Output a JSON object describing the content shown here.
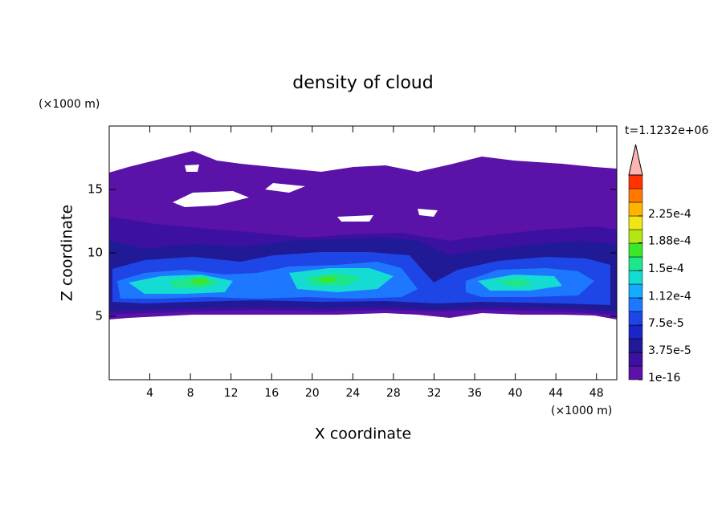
{
  "chart_data": {
    "type": "contour",
    "title": "density of cloud",
    "x_label": "X coordinate",
    "y_label": "Z coordinate",
    "x_unit": "(×1000 m)",
    "y_unit": "(×1000 m)",
    "time_label": "t=1.1232e+06",
    "xlim": [
      0,
      50
    ],
    "xticks": [
      4,
      8,
      12,
      16,
      20,
      24,
      28,
      32,
      36,
      40,
      44,
      48
    ],
    "ylim": [
      0,
      20
    ],
    "yticks": [
      5,
      10,
      15
    ],
    "colorbar": {
      "step": 1.875e-05,
      "colors": [
        "#5a12a8",
        "#3c10a0",
        "#201a96",
        "#1a24c8",
        "#1e46e6",
        "#1e78ff",
        "#14aaff",
        "#14dcd2",
        "#1ee68c",
        "#3ce628",
        "#b4e614",
        "#f0e614",
        "#ffb400",
        "#ff7800",
        "#ff3200"
      ],
      "extend_color": "#ffb4b4",
      "ticks": [
        1e-16,
        {
          "value": 3.75e-05,
          "label": "3.75e-5"
        },
        {
          "value": 7.5e-05,
          "label": "7.5e-5"
        },
        {
          "value": 0.000112,
          "label": "1.12e-4"
        },
        {
          "value": 0.00015,
          "label": "1.5e-4"
        },
        {
          "value": 0.000188,
          "label": "1.88e-4"
        },
        {
          "value": 0.000225,
          "label": "2.25e-4"
        }
      ]
    }
  }
}
